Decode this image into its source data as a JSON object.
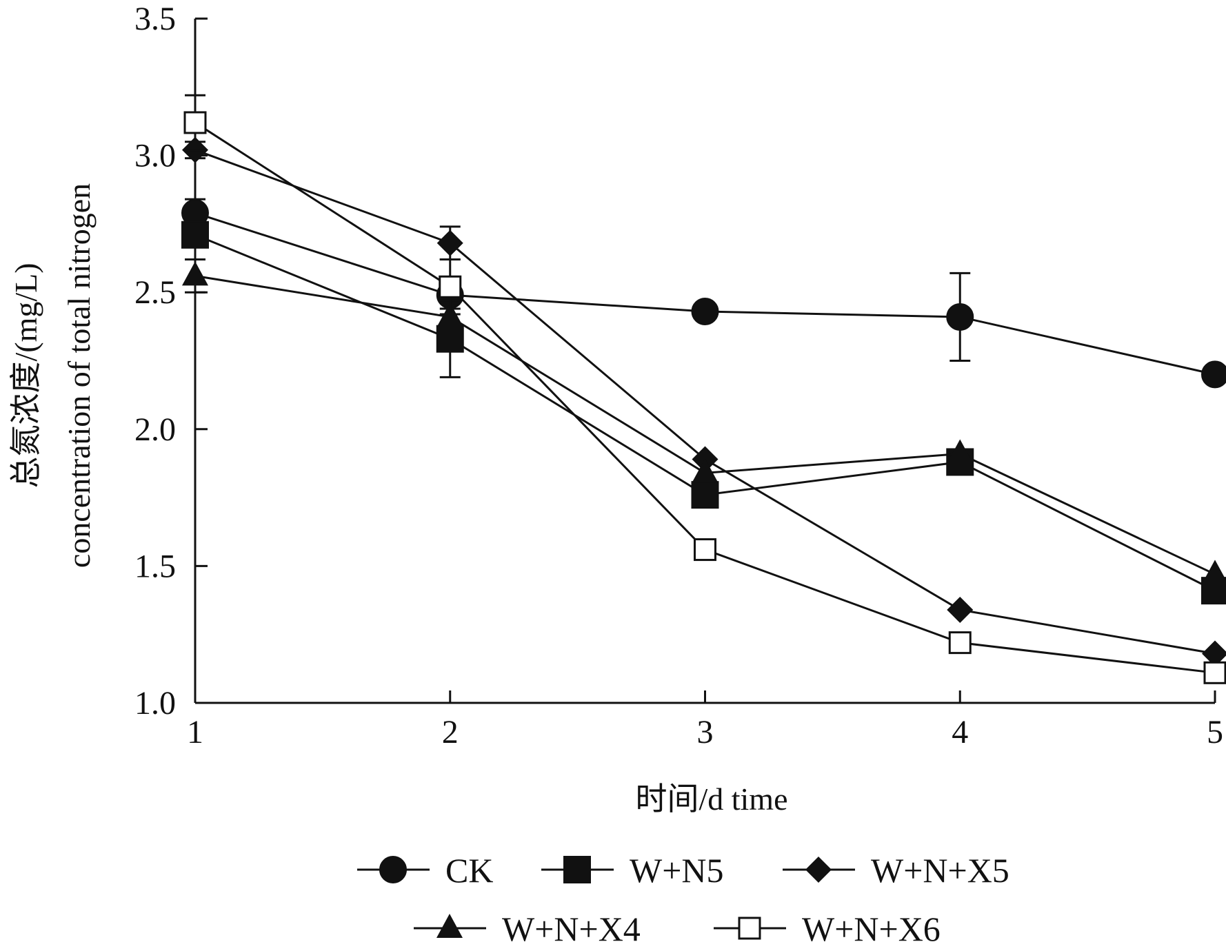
{
  "chart_data": {
    "type": "line",
    "x": [
      1,
      2,
      3,
      4,
      5
    ],
    "xlabel": "时间/d time",
    "ylabel_line1": "总氮浓度/(mg/L)",
    "ylabel_line2": "concentration of total nitrogen",
    "xlim": [
      1,
      5
    ],
    "ylim": [
      1.0,
      3.5
    ],
    "xticks": [
      "1",
      "2",
      "3",
      "4",
      "5"
    ],
    "yticks": [
      "1.0",
      "1.5",
      "2.0",
      "2.5",
      "3.0",
      "3.5"
    ],
    "grid": false,
    "legend_position": "bottom",
    "series": [
      {
        "name": "CK",
        "marker": "circle-filled",
        "values": [
          2.79,
          2.49,
          2.43,
          2.41,
          2.2
        ],
        "errors": [
          0.05,
          0.03,
          0.02,
          0.16,
          0.02
        ]
      },
      {
        "name": "W+N5",
        "marker": "square-filled",
        "values": [
          2.71,
          2.33,
          1.76,
          1.88,
          1.41
        ],
        "errors": [
          0.03,
          0.14,
          0.03,
          0.03,
          0.03
        ]
      },
      {
        "name": "W+N+X5",
        "marker": "diamond-filled",
        "values": [
          3.02,
          2.68,
          1.89,
          1.34,
          1.18
        ],
        "errors": [
          0.03,
          0.06,
          0.02,
          0.02,
          0.02
        ]
      },
      {
        "name": "W+N+X4",
        "marker": "triangle-filled",
        "values": [
          2.56,
          2.41,
          1.84,
          1.91,
          1.47
        ],
        "errors": [
          0.06,
          0.03,
          0.02,
          0.02,
          0.02
        ]
      },
      {
        "name": "W+N+X6",
        "marker": "square-open",
        "values": [
          3.12,
          2.52,
          1.56,
          1.22,
          1.11
        ],
        "errors": [
          0.1,
          0.1,
          0.02,
          0.02,
          0.02
        ]
      }
    ]
  }
}
